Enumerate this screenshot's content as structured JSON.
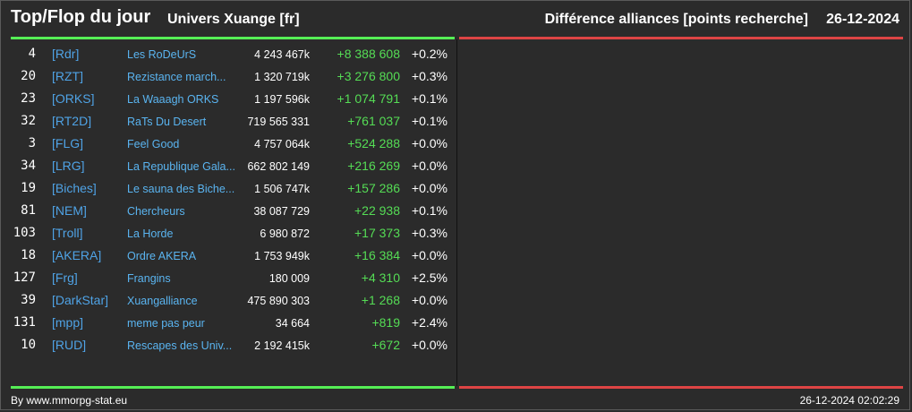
{
  "header": {
    "title": "Top/Flop du jour",
    "universe": "Univers Xuange [fr]",
    "subtitle": "Différence alliances [points recherche]",
    "date": "26-12-2024"
  },
  "colors": {
    "top_bar": "#55ee55",
    "flop_bar": "#dd4444",
    "positive_diff": "#55dd55",
    "tag": "#4fa3e6",
    "name": "#5ab4f0"
  },
  "top_rows": [
    {
      "rank": "4",
      "tag": "[Rdr]",
      "name": "Les RoDeUrS",
      "points": "4 243 467k",
      "diff": "+8 388 608",
      "pct": "+0.2%"
    },
    {
      "rank": "20",
      "tag": "[RZT]",
      "name": "Rezistance march...",
      "points": "1 320 719k",
      "diff": "+3 276 800",
      "pct": "+0.3%"
    },
    {
      "rank": "23",
      "tag": "[ORKS]",
      "name": "La Waaagh ORKS",
      "points": "1 197 596k",
      "diff": "+1 074 791",
      "pct": "+0.1%"
    },
    {
      "rank": "32",
      "tag": "[RT2D]",
      "name": "RaTs Du Desert",
      "points": "719 565 331",
      "diff": "+761 037",
      "pct": "+0.1%"
    },
    {
      "rank": "3",
      "tag": "[FLG]",
      "name": "Feel Good",
      "points": "4 757 064k",
      "diff": "+524 288",
      "pct": "+0.0%"
    },
    {
      "rank": "34",
      "tag": "[LRG]",
      "name": "La Republique Gala...",
      "points": "662 802 149",
      "diff": "+216 269",
      "pct": "+0.0%"
    },
    {
      "rank": "19",
      "tag": "[Biches]",
      "name": "Le sauna des Biche...",
      "points": "1 506 747k",
      "diff": "+157 286",
      "pct": "+0.0%"
    },
    {
      "rank": "81",
      "tag": "[NEM]",
      "name": "Chercheurs",
      "points": "38 087 729",
      "diff": "+22 938",
      "pct": "+0.1%"
    },
    {
      "rank": "103",
      "tag": "[Troll]",
      "name": "La Horde",
      "points": "6 980 872",
      "diff": "+17 373",
      "pct": "+0.3%"
    },
    {
      "rank": "18",
      "tag": "[AKERA]",
      "name": "Ordre AKERA",
      "points": "1 753 949k",
      "diff": "+16 384",
      "pct": "+0.0%"
    },
    {
      "rank": "127",
      "tag": "[Frg]",
      "name": "Frangins",
      "points": "180 009",
      "diff": "+4 310",
      "pct": "+2.5%"
    },
    {
      "rank": "39",
      "tag": "[DarkStar]",
      "name": "Xuangalliance",
      "points": "475 890 303",
      "diff": "+1 268",
      "pct": "+0.0%"
    },
    {
      "rank": "131",
      "tag": "[mpp]",
      "name": "meme pas peur",
      "points": "34 664",
      "diff": "+819",
      "pct": "+2.4%"
    },
    {
      "rank": "10",
      "tag": "[RUD]",
      "name": "Rescapes des Univ...",
      "points": "2 192 415k",
      "diff": "+672",
      "pct": "+0.0%"
    }
  ],
  "footer": {
    "credit": "By www.mmorpg-stat.eu",
    "timestamp": "26-12-2024 02:02:29"
  }
}
